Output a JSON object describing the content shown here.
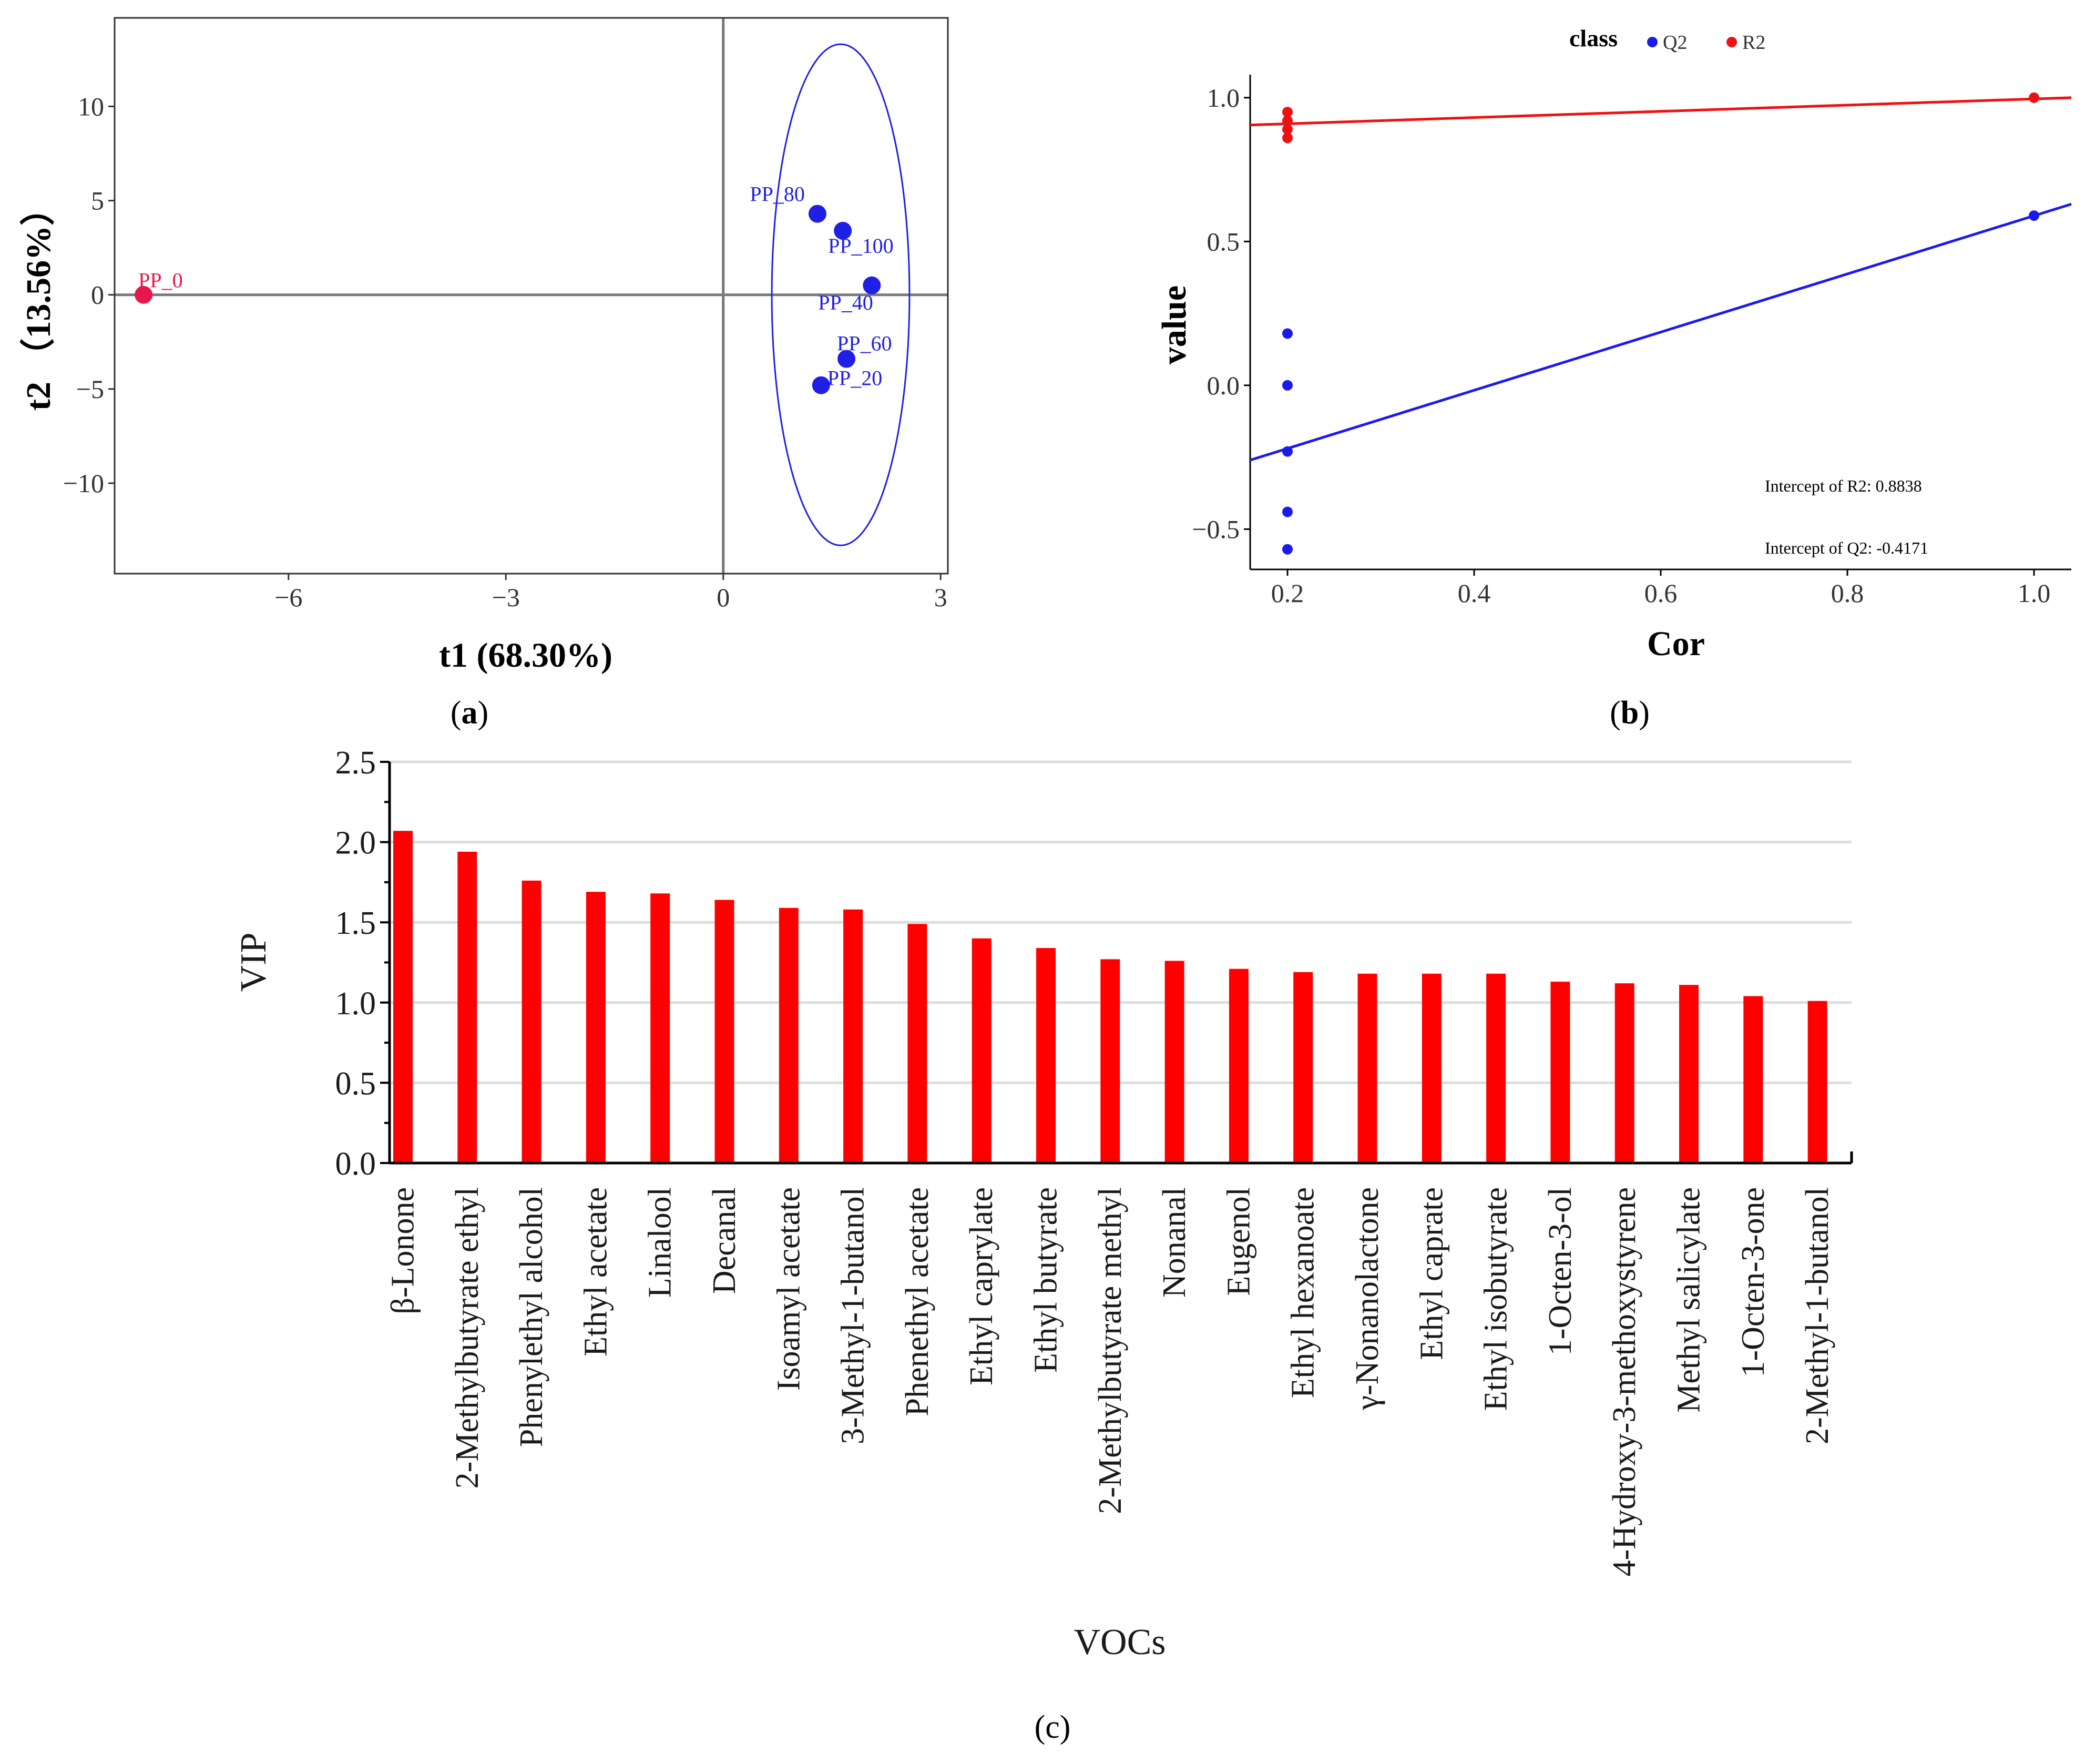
{
  "colors": {
    "red": "#e8174a",
    "blue": "#1f1fe6",
    "bar_red": "#ff0000",
    "cv_red": "#ee1111",
    "cv_blue": "#1a1aee"
  },
  "chart_data": [
    {
      "id": "a",
      "type": "scatter",
      "panel_label": {
        "open": "(",
        "letter": "a",
        "close": ")"
      },
      "xlabel": "t1 (68.30%)",
      "ylabel": "t2 （13.56%）",
      "xlim": [
        -8.4,
        3.1
      ],
      "ylim": [
        -14.8,
        14.7
      ],
      "xticks": [
        -6,
        -3,
        0,
        3
      ],
      "yticks": [
        -10,
        -5,
        0,
        5,
        10
      ],
      "xtick_labels": [
        "−6",
        "−3",
        "0",
        "3"
      ],
      "ytick_labels": [
        "−10",
        "−5",
        "0",
        "5",
        "10"
      ],
      "points": [
        {
          "label": "PP_0",
          "x": -8.0,
          "y": 0.0,
          "group": "control"
        },
        {
          "label": "PP_80",
          "x": 1.3,
          "y": 4.3,
          "group": "treated"
        },
        {
          "label": "PP_100",
          "x": 1.65,
          "y": 3.4,
          "group": "treated"
        },
        {
          "label": "PP_40",
          "x": 2.05,
          "y": 0.5,
          "group": "treated"
        },
        {
          "label": "PP_60",
          "x": 1.7,
          "y": -3.4,
          "group": "treated"
        },
        {
          "label": "PP_20",
          "x": 1.35,
          "y": -4.8,
          "group": "treated"
        }
      ],
      "ellipse": {
        "cx": 1.62,
        "cy": 0.0,
        "rx": 0.95,
        "ry": 13.3
      }
    },
    {
      "id": "b",
      "type": "scatter",
      "panel_label": {
        "open": "(",
        "letter": "b",
        "close": ")"
      },
      "xlabel": "Cor",
      "ylabel": "value",
      "xlim": [
        0.16,
        1.04
      ],
      "ylim": [
        -0.64,
        1.08
      ],
      "xticks": [
        0.2,
        0.4,
        0.6,
        0.8,
        1.0
      ],
      "yticks": [
        -0.5,
        0.0,
        0.5,
        1.0
      ],
      "xtick_labels": [
        "0.2",
        "0.4",
        "0.6",
        "0.8",
        "1.0"
      ],
      "ytick_labels": [
        "−0.5",
        "0.0",
        "0.5",
        "1.0"
      ],
      "legend": {
        "title": "class",
        "entries": [
          "Q2",
          "R2"
        ]
      },
      "series": [
        {
          "name": "Q2",
          "points": [
            [
              0.2,
              0.18
            ],
            [
              0.2,
              0.0
            ],
            [
              0.2,
              -0.23
            ],
            [
              0.2,
              -0.44
            ],
            [
              0.2,
              -0.57
            ],
            [
              1.0,
              0.59
            ]
          ],
          "fit": [
            [
              0.16,
              -0.26
            ],
            [
              1.04,
              0.63
            ]
          ]
        },
        {
          "name": "R2",
          "points": [
            [
              0.2,
              0.95
            ],
            [
              0.2,
              0.92
            ],
            [
              0.2,
              0.89
            ],
            [
              0.2,
              0.86
            ],
            [
              1.0,
              1.0
            ]
          ],
          "fit": [
            [
              0.16,
              0.905
            ],
            [
              1.04,
              1.0
            ]
          ]
        }
      ],
      "annotations": [
        "Intercept of R2: 0.8838",
        "Intercept of Q2: -0.4171"
      ]
    },
    {
      "id": "c",
      "type": "bar",
      "panel_label": {
        "open": "(",
        "letter": "c",
        "close": ")"
      },
      "xlabel": "VOCs",
      "ylabel": "VIP",
      "ylim": [
        0,
        2.5
      ],
      "yticks": [
        0.0,
        0.5,
        1.0,
        1.5,
        2.0,
        2.5
      ],
      "ytick_labels": [
        "0.0",
        "0.5",
        "1.0",
        "1.5",
        "2.0",
        "2.5"
      ],
      "categories": [
        "β-Lonone",
        "2-Methylbutyrate ethyl",
        "Phenylethyl alcohol",
        "Ethyl acetate",
        "Linalool",
        "Decanal",
        "Isoamyl acetate",
        "3-Methyl-1-butanol",
        "Phenethyl acetate",
        "Ethyl caprylate",
        "Ethyl butyrate",
        "2-Methylbutyrate methyl",
        "Nonanal",
        "Eugenol",
        "Ethyl hexanoate",
        "γ-Nonanolactone",
        "Ethyl caprate",
        "Ethyl isobutyrate",
        "1-Octen-3-ol",
        "4-Hydroxy-3-methoxystyrene",
        "Methyl salicylate",
        "1-Octen-3-one",
        "2-Methyl-1-butanol"
      ],
      "values": [
        2.07,
        1.94,
        1.76,
        1.69,
        1.68,
        1.64,
        1.59,
        1.58,
        1.49,
        1.4,
        1.34,
        1.27,
        1.26,
        1.21,
        1.19,
        1.18,
        1.18,
        1.18,
        1.13,
        1.12,
        1.11,
        1.04,
        1.01
      ]
    }
  ]
}
